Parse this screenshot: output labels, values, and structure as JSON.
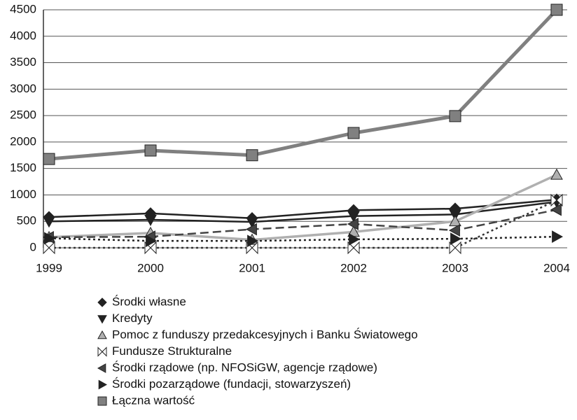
{
  "chart_data": {
    "type": "line",
    "categories": [
      "1999",
      "2000",
      "2001",
      "2002",
      "2003",
      "2004"
    ],
    "ylim": [
      0,
      4500
    ],
    "yticks": [
      0,
      500,
      1000,
      1500,
      2000,
      2500,
      3000,
      3500,
      4000,
      4500
    ],
    "grid": true,
    "series": [
      {
        "name": "Środki własne",
        "color": "#222222",
        "marker": "diamond",
        "dash": "solid",
        "values": [
          580,
          650,
          560,
          710,
          740,
          910
        ]
      },
      {
        "name": "Kredyty",
        "color": "#222222",
        "marker": "triangle-down",
        "dash": "solid",
        "values": [
          500,
          530,
          490,
          600,
          630,
          870
        ]
      },
      {
        "name": "Pomoc z funduszy przedakcesyjnych i Banku Światowego",
        "color": "#b0b0b0",
        "marker": "triangle-up",
        "dash": "solid",
        "values": [
          200,
          280,
          150,
          300,
          500,
          1380
        ]
      },
      {
        "name": "Fundusze Strukturalne",
        "color": "#333333",
        "marker": "bowtie",
        "dash": "dotted",
        "values": [
          0,
          0,
          0,
          0,
          0,
          900
        ]
      },
      {
        "name": "Środki rządowe (np. NFOSiGW, agencje rządowe)",
        "color": "#444444",
        "marker": "triangle-left",
        "dash": "dashed",
        "values": [
          200,
          210,
          350,
          450,
          330,
          720
        ]
      },
      {
        "name": "Środki pozarządowe (fundacji, stowarzyszeń)",
        "color": "#222222",
        "marker": "triangle-right",
        "dash": "dotted",
        "values": [
          180,
          130,
          130,
          160,
          170,
          210
        ]
      },
      {
        "name": "Łączna wartość",
        "color": "#808080",
        "marker": "square",
        "dash": "solid",
        "values": [
          1680,
          1840,
          1750,
          2170,
          2490,
          4500
        ]
      }
    ]
  }
}
